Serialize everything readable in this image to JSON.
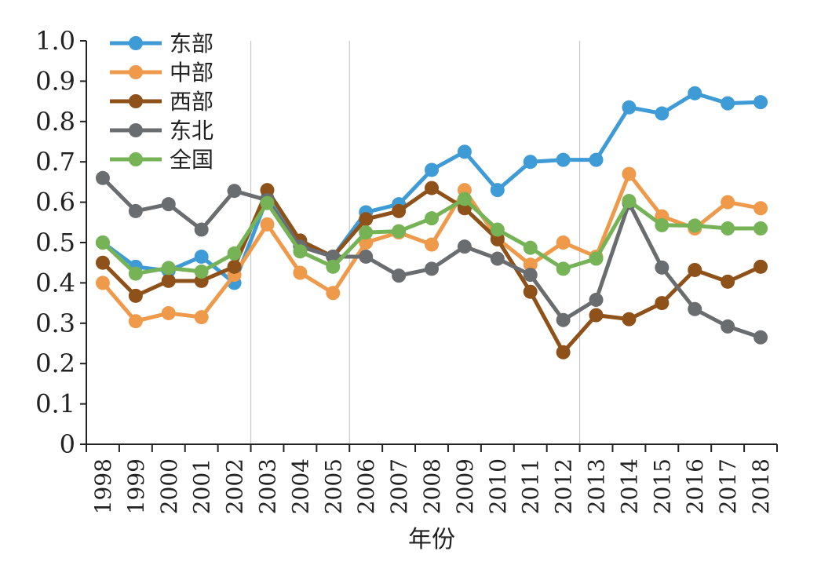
{
  "chart_data": {
    "type": "line",
    "title": "",
    "xlabel": "年份",
    "ylabel": "",
    "ylim": [
      0,
      1.0
    ],
    "y_ticks": [
      "0",
      "0.1",
      "0.2",
      "0.3",
      "0.4",
      "0.5",
      "0.6",
      "0.7",
      "0.8",
      "0.9",
      "1.0"
    ],
    "x": [
      "1998",
      "1999",
      "2000",
      "2001",
      "2002",
      "2003",
      "2004",
      "2005",
      "2006",
      "2007",
      "2008",
      "2009",
      "2010",
      "2011",
      "2012",
      "2013",
      "2014",
      "2015",
      "2016",
      "2017",
      "2018"
    ],
    "reference_lines_at": [
      "2002",
      "2005",
      "2012"
    ],
    "legend_position": "top-left",
    "grid": false,
    "series": [
      {
        "name": "东部",
        "color": "#3E9BD6",
        "values": [
          0.5,
          0.44,
          0.43,
          0.465,
          0.4,
          0.61,
          0.495,
          0.465,
          0.575,
          0.595,
          0.68,
          0.725,
          0.63,
          0.7,
          0.705,
          0.705,
          0.835,
          0.82,
          0.87,
          0.845,
          0.848
        ]
      },
      {
        "name": "中部",
        "color": "#EE9A4A",
        "values": [
          0.4,
          0.305,
          0.325,
          0.315,
          0.42,
          0.545,
          0.425,
          0.375,
          0.5,
          0.525,
          0.495,
          0.63,
          0.51,
          0.445,
          0.5,
          0.465,
          0.67,
          0.565,
          0.535,
          0.6,
          0.585
        ]
      },
      {
        "name": "西部",
        "color": "#8E5119",
        "values": [
          0.45,
          0.368,
          0.405,
          0.405,
          0.44,
          0.63,
          0.505,
          0.465,
          0.558,
          0.578,
          0.635,
          0.585,
          0.508,
          0.378,
          0.228,
          0.32,
          0.31,
          0.35,
          0.432,
          0.403,
          0.44
        ]
      },
      {
        "name": "东北",
        "color": "#6A6D70",
        "values": [
          0.66,
          0.578,
          0.595,
          0.532,
          0.628,
          0.605,
          0.49,
          0.465,
          0.465,
          0.418,
          0.435,
          0.49,
          0.46,
          0.42,
          0.308,
          0.358,
          0.598,
          0.438,
          0.335,
          0.292,
          0.265
        ]
      },
      {
        "name": "全国",
        "color": "#76B356",
        "values": [
          0.5,
          0.423,
          0.437,
          0.428,
          0.473,
          0.598,
          0.478,
          0.44,
          0.525,
          0.528,
          0.56,
          0.608,
          0.532,
          0.487,
          0.435,
          0.46,
          0.603,
          0.543,
          0.542,
          0.535,
          0.535
        ]
      }
    ]
  }
}
